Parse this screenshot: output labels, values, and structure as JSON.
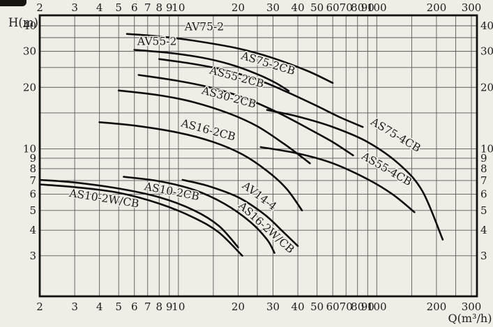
{
  "page": {
    "kind": "scanned pump performance curve chart"
  },
  "colors": {
    "background": "#f0ede7",
    "grid": "#585858",
    "border": "#111111",
    "curve": "#0d0d0d",
    "text": "#1c1c1c"
  },
  "chart_data": {
    "type": "line",
    "title": "",
    "xlabel": "Q(m³/h)",
    "ylabel": "H(m)",
    "x_scale": "log",
    "y_scale": "log",
    "xlim": [
      2,
      320
    ],
    "ylim": [
      1.9,
      45
    ],
    "grid": true,
    "x_gridlines": [
      3,
      4,
      5,
      6,
      7,
      8,
      9,
      10,
      15,
      20,
      25,
      30,
      40,
      50,
      60,
      70,
      80,
      90,
      100,
      150,
      200,
      250,
      300
    ],
    "y_gridlines": [
      3,
      4,
      5,
      6,
      7,
      8,
      9,
      10,
      15,
      20,
      25,
      30,
      35,
      40
    ],
    "x_tick_labels": [
      2,
      3,
      4,
      5,
      6,
      7,
      8,
      9,
      10,
      20,
      30,
      40,
      50,
      60,
      70,
      80,
      90,
      100,
      200,
      300
    ],
    "y_tick_labels": [
      40,
      30,
      20,
      10,
      9,
      8,
      7,
      6,
      5,
      4,
      3
    ],
    "tick_label_sides": [
      "top",
      "bottom",
      "left",
      "right"
    ],
    "series": [
      {
        "name": "AV75-2",
        "points": [
          [
            5.5,
            36.5
          ],
          [
            8,
            35.5
          ],
          [
            12,
            33.8
          ],
          [
            20,
            31
          ],
          [
            30,
            27.8
          ],
          [
            45,
            24
          ],
          [
            60,
            21
          ]
        ],
        "label_at": [
          13.5,
          38
        ],
        "label_rotation": 0
      },
      {
        "name": "AV55-2",
        "points": [
          [
            6,
            30.5
          ],
          [
            9,
            29.5
          ],
          [
            13,
            28
          ],
          [
            18,
            26
          ],
          [
            25,
            23.2
          ],
          [
            31,
            21
          ],
          [
            36,
            19.2
          ]
        ],
        "label_at": [
          7.8,
          32.2
        ],
        "label_rotation": 0
      },
      {
        "name": "AS75-2CB",
        "points": [
          [
            8,
            27.5
          ],
          [
            12,
            26
          ],
          [
            18,
            24
          ],
          [
            26,
            21.5
          ],
          [
            36,
            18.8
          ],
          [
            50,
            16.2
          ],
          [
            65,
            14.3
          ],
          [
            85,
            12.8
          ]
        ],
        "label_at": [
          28,
          25.2
        ],
        "label_rotation": 17
      },
      {
        "name": "AS55-2CB",
        "points": [
          [
            6.3,
            23
          ],
          [
            10,
            21.5
          ],
          [
            15,
            19.8
          ],
          [
            22,
            17.6
          ],
          [
            32,
            15
          ],
          [
            45,
            12.6
          ],
          [
            60,
            10.8
          ],
          [
            76,
            9.3
          ]
        ],
        "label_at": [
          19.5,
          21.6
        ],
        "label_rotation": 15
      },
      {
        "name": "AS30-2CB",
        "points": [
          [
            5,
            19.3
          ],
          [
            8,
            18.3
          ],
          [
            12,
            16.9
          ],
          [
            18,
            14.9
          ],
          [
            25,
            12.9
          ],
          [
            34,
            10.6
          ],
          [
            42,
            9.1
          ],
          [
            46,
            8.5
          ]
        ],
        "label_at": [
          17.8,
          17.2
        ],
        "label_rotation": 15
      },
      {
        "name": "AS16-2CB",
        "points": [
          [
            4,
            13.5
          ],
          [
            6,
            13
          ],
          [
            10,
            12
          ],
          [
            15,
            10.8
          ],
          [
            21,
            9.4
          ],
          [
            28,
            7.8
          ],
          [
            35,
            6.4
          ],
          [
            42,
            5
          ]
        ],
        "label_at": [
          14,
          11.9
        ],
        "label_rotation": 15
      },
      {
        "name": "AS10-2W/CB",
        "points": [
          [
            2,
            6.7
          ],
          [
            3,
            6.5
          ],
          [
            5,
            6.1
          ],
          [
            8,
            5.4
          ],
          [
            12,
            4.6
          ],
          [
            16,
            3.9
          ],
          [
            21,
            3.0
          ]
        ],
        "label_at": [
          4.2,
          5.5
        ],
        "label_rotation": 9
      },
      {
        "name": "AS10-2CB",
        "points": [
          [
            2,
            7.05
          ],
          [
            3,
            6.85
          ],
          [
            5,
            6.4
          ],
          [
            8,
            5.8
          ],
          [
            12,
            5.0
          ],
          [
            16,
            4.2
          ],
          [
            20,
            3.3
          ]
        ],
        "label_at": [
          9.2,
          5.95
        ],
        "label_rotation": 11
      },
      {
        "name": "AV14-4",
        "points": [
          [
            10.5,
            7.05
          ],
          [
            14,
            6.6
          ],
          [
            20,
            5.8
          ],
          [
            27,
            4.8
          ],
          [
            34,
            3.9
          ],
          [
            40,
            3.35
          ]
        ],
        "label_at": [
          25,
          5.7
        ],
        "label_rotation": 37
      },
      {
        "name": "AS16-2W/CB",
        "points": [
          [
            5.3,
            7.3
          ],
          [
            8,
            6.95
          ],
          [
            12,
            6.3
          ],
          [
            17,
            5.4
          ],
          [
            23,
            4.4
          ],
          [
            28,
            3.6
          ],
          [
            30.5,
            3.1
          ]
        ],
        "label_at": [
          27,
          4.0
        ],
        "label_rotation": 42
      },
      {
        "name": "AS75-4CB",
        "points": [
          [
            28,
            15.5
          ],
          [
            40,
            14.4
          ],
          [
            60,
            12.8
          ],
          [
            90,
            10.8
          ],
          [
            130,
            8.4
          ],
          [
            170,
            6.2
          ],
          [
            215,
            3.6
          ]
        ],
        "label_at": [
          122,
          11.3
        ],
        "label_rotation": 31
      },
      {
        "name": "AS55-4CB",
        "points": [
          [
            26,
            10.2
          ],
          [
            40,
            9.5
          ],
          [
            60,
            8.5
          ],
          [
            90,
            7.1
          ],
          [
            120,
            6.0
          ],
          [
            155,
            4.9
          ]
        ],
        "label_at": [
          110,
          7.7
        ],
        "label_rotation": 30
      }
    ]
  }
}
